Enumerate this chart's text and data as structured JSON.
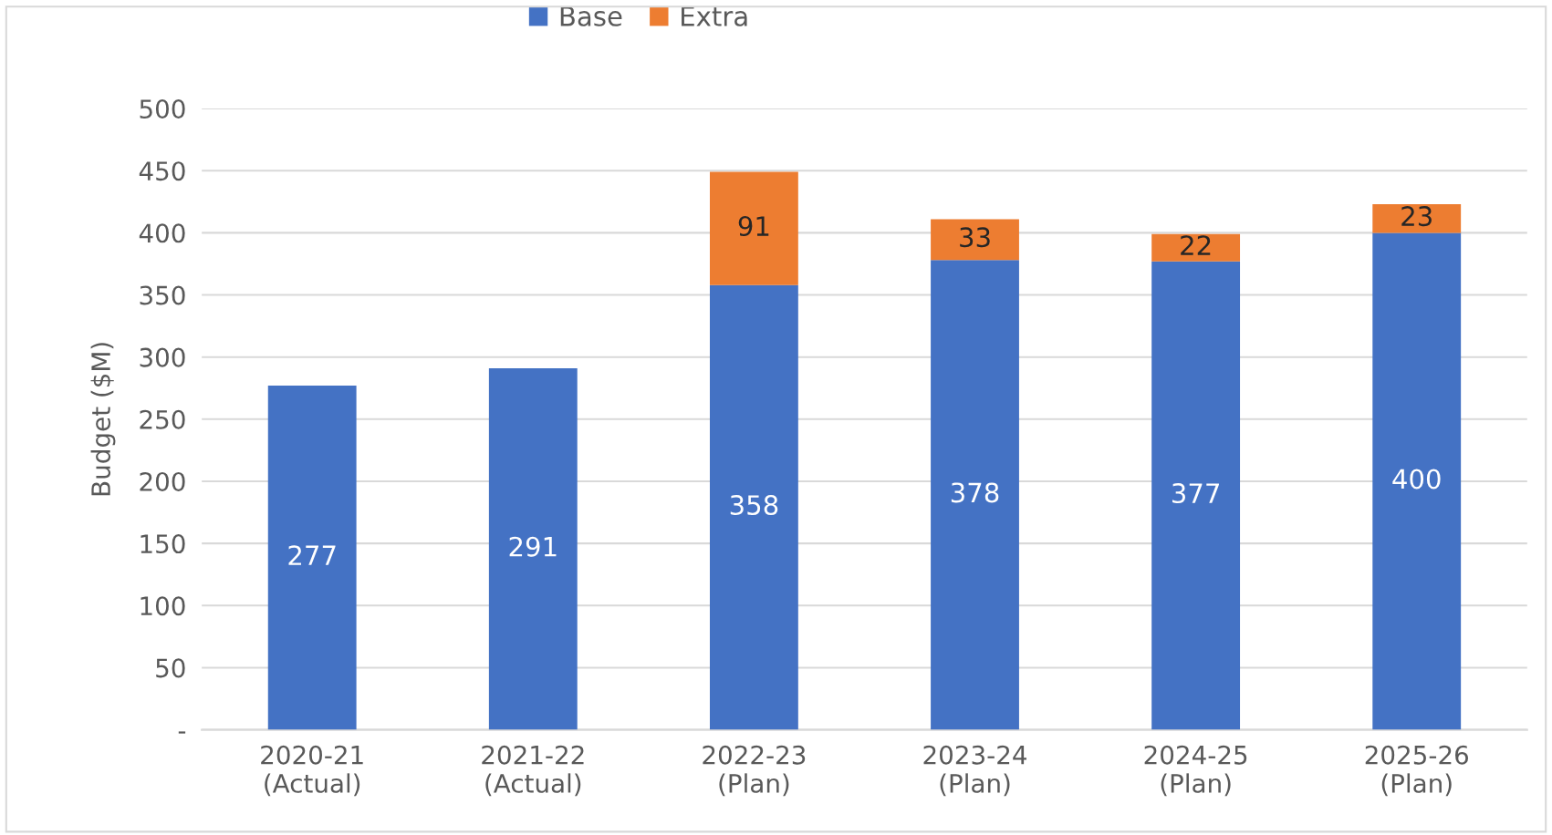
{
  "chart_data": {
    "type": "bar",
    "stacked": true,
    "categories": [
      "2020-21\n(Actual)",
      "2021-22\n(Actual)",
      "2022-23\n(Plan)",
      "2023-24\n(Plan)",
      "2024-25\n(Plan)",
      "2025-26\n(Plan)"
    ],
    "series": [
      {
        "name": "Base",
        "color": "#4472c4",
        "values": [
          277,
          291,
          358,
          378,
          377,
          400
        ]
      },
      {
        "name": "Extra",
        "color": "#ed7d31",
        "values": [
          null,
          null,
          91,
          33,
          22,
          23
        ]
      }
    ],
    "ylabel": "Budget ($M)",
    "ylim": [
      0,
      500
    ],
    "yticks": [
      {
        "value": 0,
        "label": "-"
      },
      50,
      100,
      150,
      200,
      250,
      300,
      350,
      400,
      450,
      500
    ],
    "grid": "y",
    "legend": "top",
    "data_labels": true
  }
}
